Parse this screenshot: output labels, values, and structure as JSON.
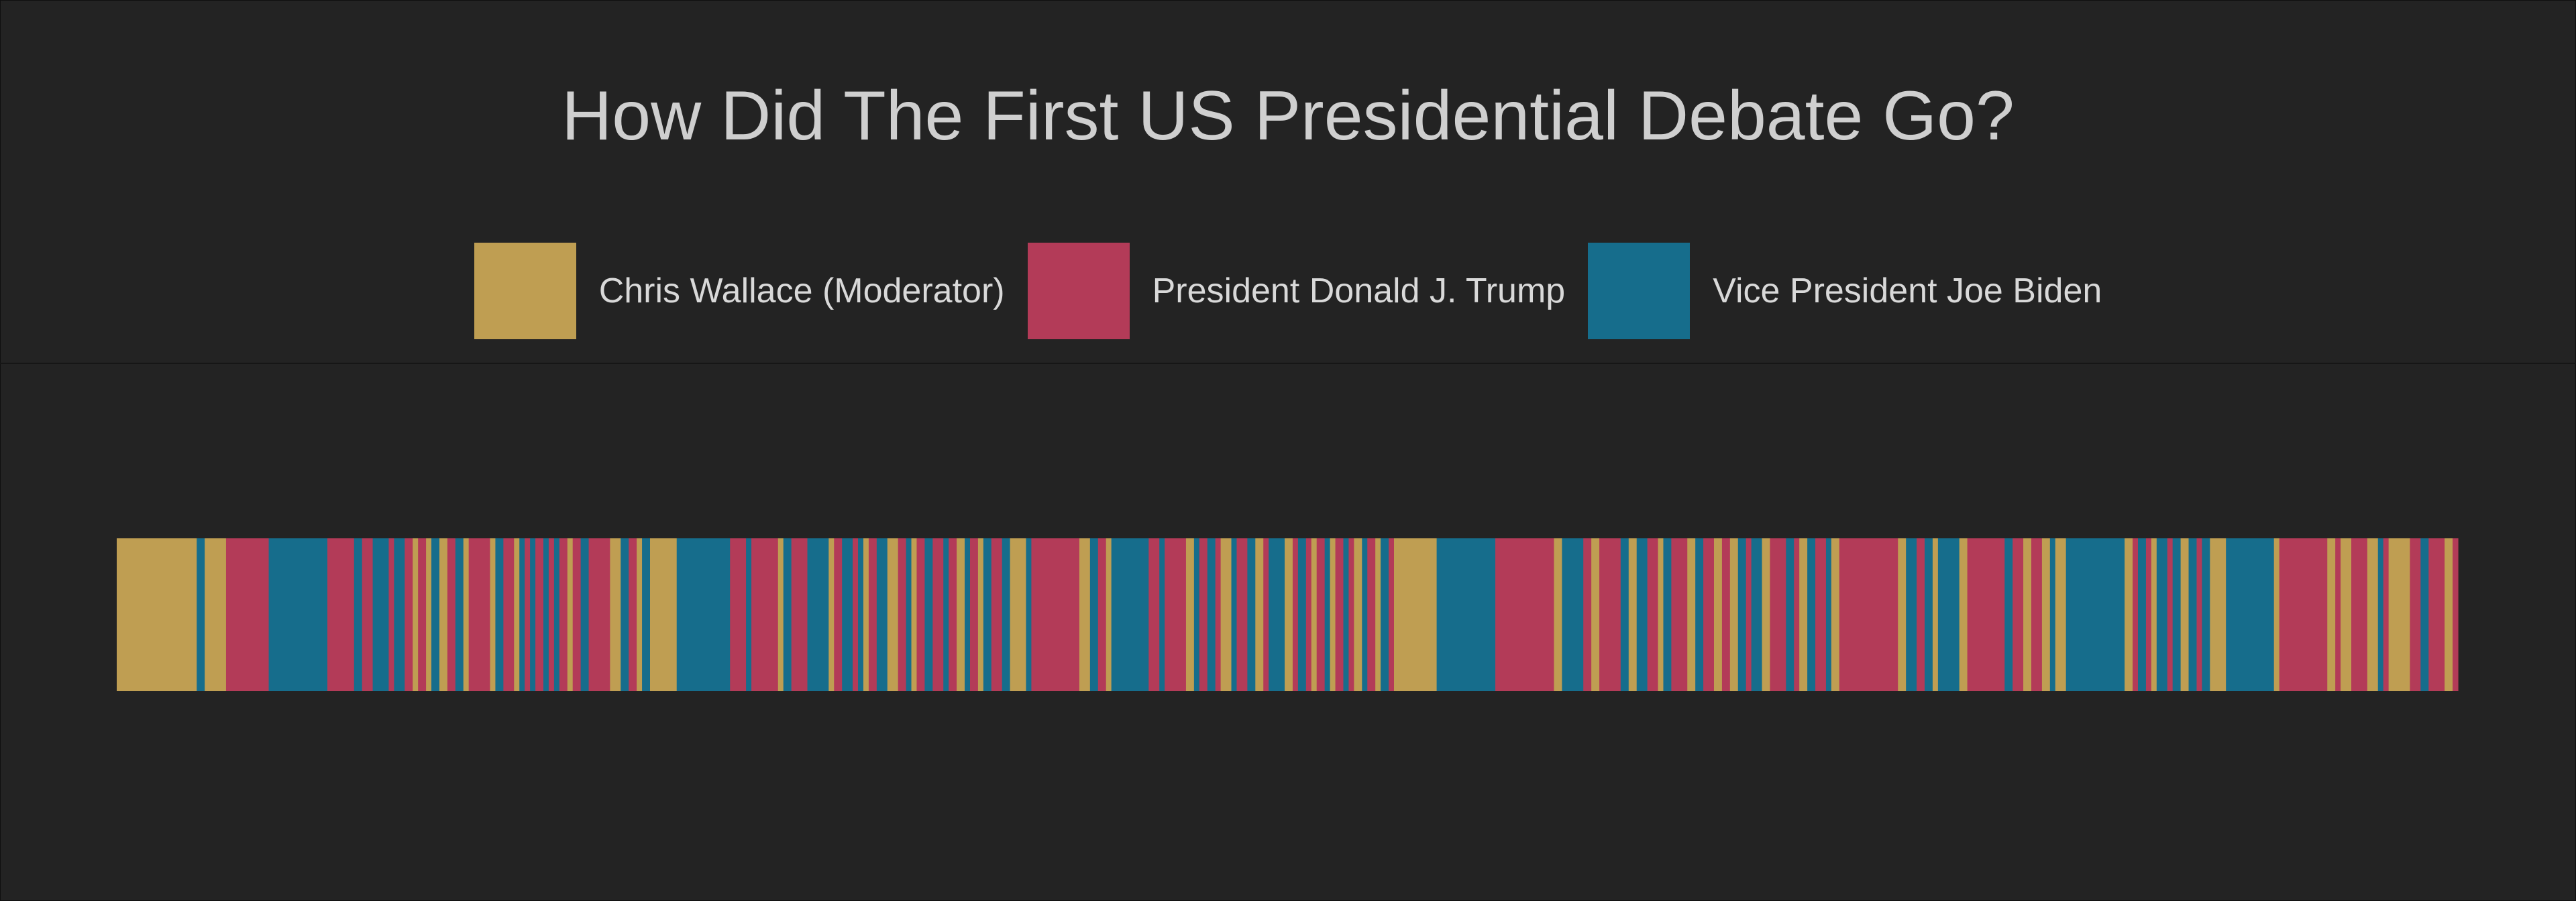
{
  "chart_data": {
    "type": "bar",
    "orientation": "horizontal-timeline",
    "title": "How Did The First US Presidential Debate Go?",
    "xlabel": "",
    "ylabel": "",
    "grid": false,
    "legend_position": "top-center",
    "series": [
      {
        "key": "W",
        "name": "Chris Wallace (Moderator)",
        "color": "#bf9e52"
      },
      {
        "key": "T",
        "name": "President Donald J. Trump",
        "color": "#b33b58"
      },
      {
        "key": "B",
        "name": "Vice President Joe Biden",
        "color": "#166d8c"
      }
    ],
    "segments": [
      [
        "W",
        3.0
      ],
      [
        "B",
        0.3
      ],
      [
        "W",
        0.8
      ],
      [
        "T",
        1.6
      ],
      [
        "B",
        2.2
      ],
      [
        "T",
        1.0
      ],
      [
        "B",
        0.3
      ],
      [
        "T",
        0.4
      ],
      [
        "B",
        0.6
      ],
      [
        "T",
        0.2
      ],
      [
        "B",
        0.4
      ],
      [
        "T",
        0.3
      ],
      [
        "W",
        0.2
      ],
      [
        "T",
        0.3
      ],
      [
        "W",
        0.2
      ],
      [
        "B",
        0.3
      ],
      [
        "W",
        0.3
      ],
      [
        "T",
        0.3
      ],
      [
        "B",
        0.3
      ],
      [
        "W",
        0.2
      ],
      [
        "T",
        0.8
      ],
      [
        "W",
        0.2
      ],
      [
        "B",
        0.3
      ],
      [
        "T",
        0.4
      ],
      [
        "W",
        0.2
      ],
      [
        "B",
        0.2
      ],
      [
        "T",
        0.2
      ],
      [
        "B",
        0.2
      ],
      [
        "T",
        0.3
      ],
      [
        "B",
        0.2
      ],
      [
        "T",
        0.2
      ],
      [
        "B",
        0.2
      ],
      [
        "T",
        0.3
      ],
      [
        "W",
        0.2
      ],
      [
        "T",
        0.3
      ],
      [
        "B",
        0.3
      ],
      [
        "T",
        0.8
      ],
      [
        "W",
        0.4
      ],
      [
        "B",
        0.3
      ],
      [
        "T",
        0.3
      ],
      [
        "W",
        0.2
      ],
      [
        "B",
        0.3
      ],
      [
        "W",
        1.0
      ],
      [
        "B",
        2.0
      ],
      [
        "T",
        0.6
      ],
      [
        "B",
        0.2
      ],
      [
        "T",
        1.0
      ],
      [
        "W",
        0.2
      ],
      [
        "B",
        0.3
      ],
      [
        "T",
        0.6
      ],
      [
        "B",
        0.8
      ],
      [
        "W",
        0.2
      ],
      [
        "T",
        0.3
      ],
      [
        "B",
        0.4
      ],
      [
        "T",
        0.2
      ],
      [
        "B",
        0.2
      ],
      [
        "W",
        0.2
      ],
      [
        "T",
        0.3
      ],
      [
        "B",
        0.4
      ],
      [
        "W",
        0.4
      ],
      [
        "T",
        0.3
      ],
      [
        "B",
        0.2
      ],
      [
        "W",
        0.2
      ],
      [
        "T",
        0.3
      ],
      [
        "B",
        0.3
      ],
      [
        "T",
        0.4
      ],
      [
        "B",
        0.2
      ],
      [
        "T",
        0.3
      ],
      [
        "W",
        0.3
      ],
      [
        "B",
        0.2
      ],
      [
        "T",
        0.3
      ],
      [
        "W",
        0.2
      ],
      [
        "B",
        0.3
      ],
      [
        "T",
        0.4
      ],
      [
        "B",
        0.3
      ],
      [
        "W",
        0.6
      ],
      [
        "B",
        0.2
      ],
      [
        "T",
        1.8
      ],
      [
        "W",
        0.4
      ],
      [
        "B",
        0.3
      ],
      [
        "T",
        0.3
      ],
      [
        "W",
        0.2
      ],
      [
        "B",
        1.4
      ],
      [
        "T",
        0.4
      ],
      [
        "B",
        0.2
      ],
      [
        "T",
        0.8
      ],
      [
        "W",
        0.3
      ],
      [
        "B",
        0.2
      ],
      [
        "T",
        0.3
      ],
      [
        "B",
        0.3
      ],
      [
        "T",
        0.2
      ],
      [
        "W",
        0.4
      ],
      [
        "B",
        0.2
      ],
      [
        "T",
        0.4
      ],
      [
        "B",
        0.3
      ],
      [
        "W",
        0.3
      ],
      [
        "T",
        0.2
      ],
      [
        "B",
        0.6
      ],
      [
        "W",
        0.3
      ],
      [
        "T",
        0.2
      ],
      [
        "B",
        0.3
      ],
      [
        "T",
        0.2
      ],
      [
        "W",
        0.2
      ],
      [
        "T",
        0.3
      ],
      [
        "B",
        0.2
      ],
      [
        "W",
        0.2
      ],
      [
        "T",
        0.3
      ],
      [
        "B",
        0.2
      ],
      [
        "T",
        0.2
      ],
      [
        "W",
        0.3
      ],
      [
        "B",
        0.2
      ],
      [
        "T",
        0.3
      ],
      [
        "W",
        0.2
      ],
      [
        "B",
        0.3
      ],
      [
        "T",
        0.2
      ],
      [
        "W",
        1.6
      ],
      [
        "B",
        2.2
      ],
      [
        "T",
        2.2
      ],
      [
        "W",
        0.3
      ],
      [
        "B",
        0.8
      ],
      [
        "T",
        0.3
      ],
      [
        "W",
        0.3
      ],
      [
        "T",
        0.8
      ],
      [
        "B",
        0.3
      ],
      [
        "W",
        0.3
      ],
      [
        "B",
        0.4
      ],
      [
        "T",
        0.4
      ],
      [
        "W",
        0.2
      ],
      [
        "B",
        0.3
      ],
      [
        "T",
        0.6
      ],
      [
        "W",
        0.3
      ],
      [
        "B",
        0.3
      ],
      [
        "T",
        0.4
      ],
      [
        "W",
        0.3
      ],
      [
        "T",
        0.3
      ],
      [
        "W",
        0.3
      ],
      [
        "B",
        0.3
      ],
      [
        "T",
        0.2
      ],
      [
        "B",
        0.4
      ],
      [
        "W",
        0.3
      ],
      [
        "T",
        0.6
      ],
      [
        "B",
        0.3
      ],
      [
        "T",
        0.2
      ],
      [
        "W",
        0.3
      ],
      [
        "B",
        0.3
      ],
      [
        "T",
        0.4
      ],
      [
        "B",
        0.2
      ],
      [
        "W",
        0.3
      ],
      [
        "T",
        2.2
      ],
      [
        "W",
        0.3
      ],
      [
        "B",
        0.4
      ],
      [
        "T",
        0.3
      ],
      [
        "B",
        0.3
      ],
      [
        "W",
        0.2
      ],
      [
        "B",
        0.8
      ],
      [
        "W",
        0.3
      ],
      [
        "T",
        1.4
      ],
      [
        "B",
        0.3
      ],
      [
        "T",
        0.4
      ],
      [
        "W",
        0.3
      ],
      [
        "T",
        0.4
      ],
      [
        "W",
        0.3
      ],
      [
        "B",
        0.2
      ],
      [
        "W",
        0.4
      ],
      [
        "B",
        2.2
      ],
      [
        "W",
        0.3
      ],
      [
        "T",
        0.2
      ],
      [
        "B",
        0.3
      ],
      [
        "T",
        0.2
      ],
      [
        "W",
        0.2
      ],
      [
        "B",
        0.4
      ],
      [
        "T",
        0.2
      ],
      [
        "B",
        0.3
      ],
      [
        "W",
        0.3
      ],
      [
        "B",
        0.3
      ],
      [
        "T",
        0.2
      ],
      [
        "B",
        0.3
      ],
      [
        "W",
        0.6
      ],
      [
        "B",
        1.8
      ],
      [
        "W",
        0.2
      ],
      [
        "T",
        1.8
      ],
      [
        "W",
        0.3
      ],
      [
        "T",
        0.2
      ],
      [
        "W",
        0.4
      ],
      [
        "T",
        0.6
      ],
      [
        "W",
        0.4
      ],
      [
        "B",
        0.2
      ],
      [
        "T",
        0.2
      ],
      [
        "W",
        0.8
      ],
      [
        "T",
        0.4
      ],
      [
        "B",
        0.3
      ],
      [
        "T",
        0.6
      ],
      [
        "W",
        0.3
      ],
      [
        "T",
        0.2
      ]
    ]
  }
}
